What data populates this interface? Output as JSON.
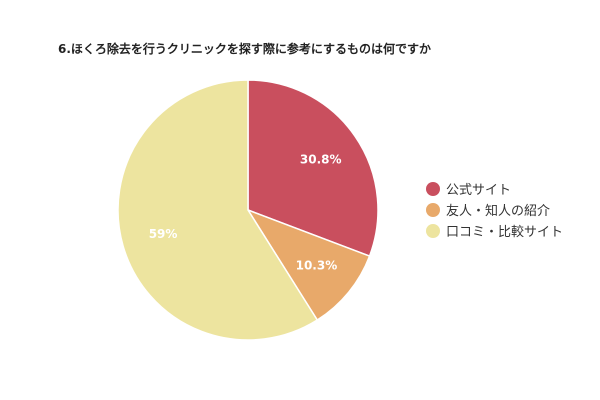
{
  "chart_data": {
    "type": "pie",
    "title": "6.ほくろ除去を行うクリニックを探す際に参考にするものは何ですか",
    "categories": [
      "公式サイト",
      "友人・知人の紹介",
      "口コミ・比較サイト"
    ],
    "values": [
      30.8,
      10.3,
      59
    ],
    "value_labels": [
      "30.8%",
      "10.3%",
      "59%"
    ],
    "colors": [
      "#c94f5e",
      "#e8a96a",
      "#ede49f"
    ],
    "legend_position": "right"
  }
}
